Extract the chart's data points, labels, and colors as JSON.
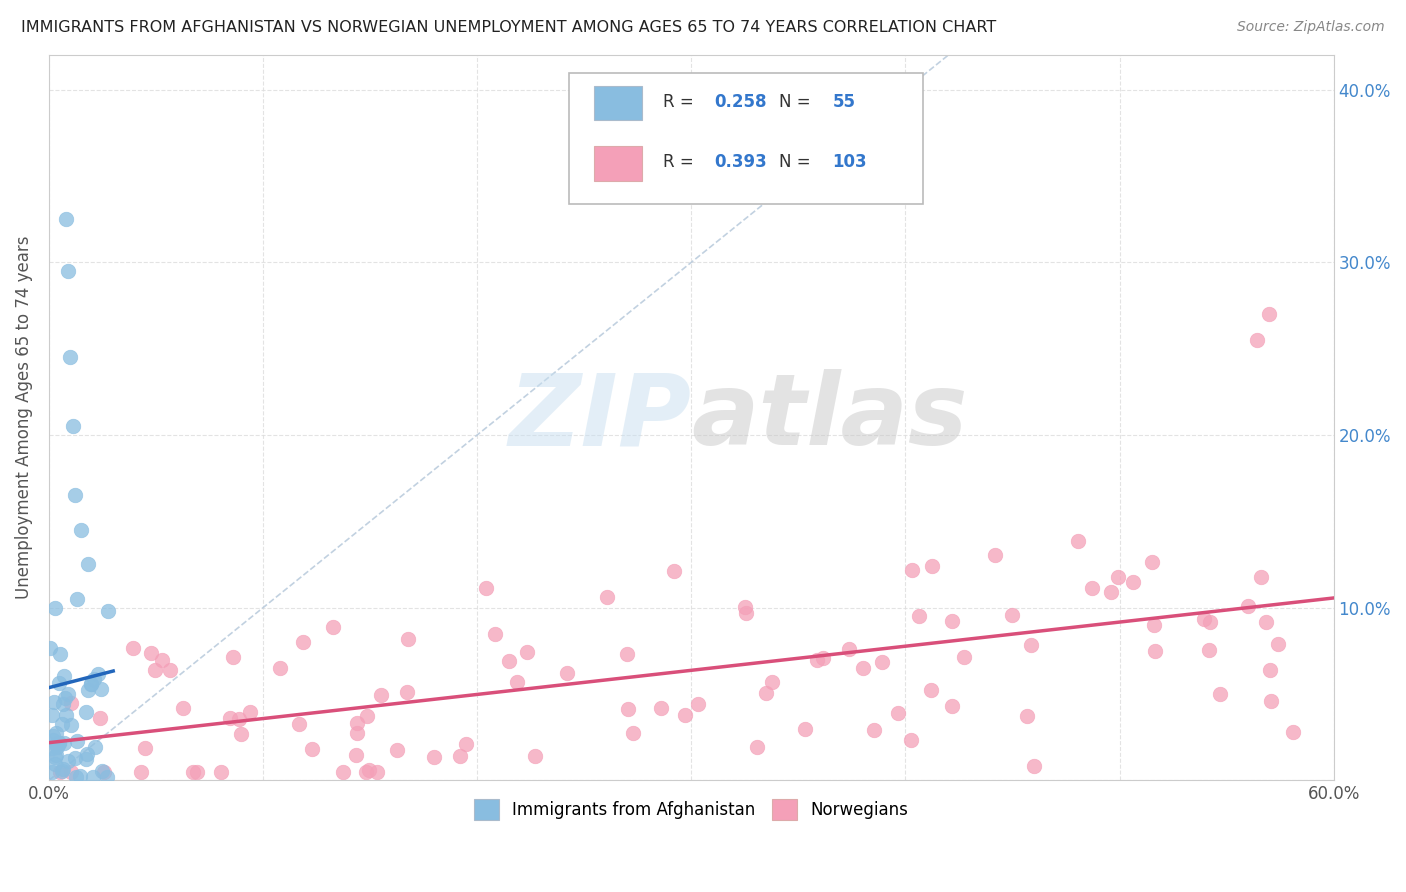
{
  "title": "IMMIGRANTS FROM AFGHANISTAN VS NORWEGIAN UNEMPLOYMENT AMONG AGES 65 TO 74 YEARS CORRELATION CHART",
  "source": "Source: ZipAtlas.com",
  "ylabel": "Unemployment Among Ages 65 to 74 years",
  "xlim": [
    0.0,
    0.6
  ],
  "ylim": [
    0.0,
    0.42
  ],
  "blue_color": "#89bde0",
  "blue_line_color": "#2266bb",
  "pink_color": "#f4a0b8",
  "pink_line_color": "#d94f7a",
  "watermark": "ZIPatlas",
  "legend_R_blue": "0.258",
  "legend_N_blue": "55",
  "legend_R_pink": "0.393",
  "legend_N_pink": "103",
  "background_color": "#ffffff",
  "grid_color": "#dddddd",
  "diag_color": "#bbccdd"
}
